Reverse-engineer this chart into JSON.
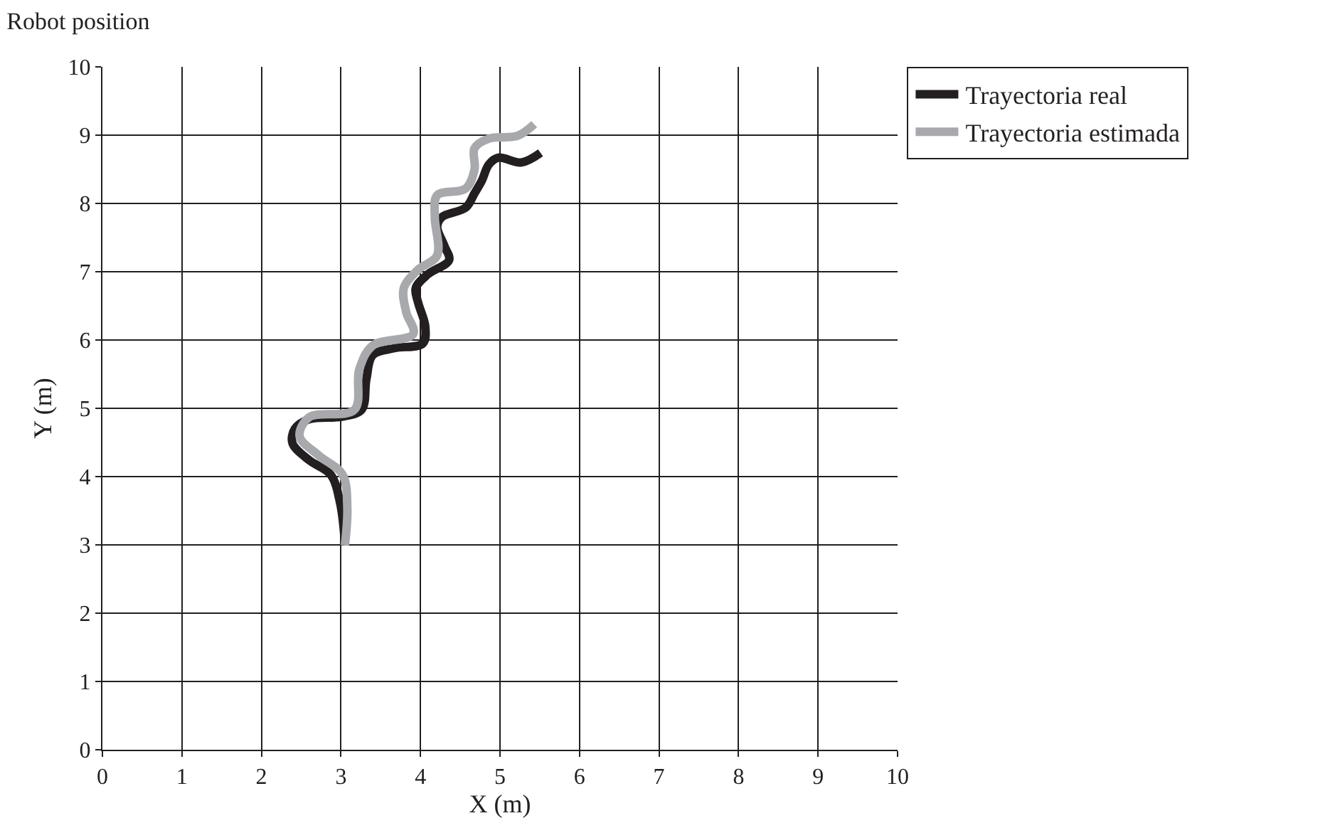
{
  "chart_data": {
    "type": "line",
    "title": "Robot position",
    "xlabel": "X (m)",
    "ylabel": "Y (m)",
    "xlim": [
      0,
      10
    ],
    "ylim": [
      0,
      10
    ],
    "xticks": [
      0,
      1,
      2,
      3,
      4,
      5,
      6,
      7,
      8,
      9,
      10
    ],
    "yticks": [
      0,
      1,
      2,
      3,
      4,
      5,
      6,
      7,
      8,
      9,
      10
    ],
    "grid": true,
    "legend": "top right",
    "marker": "none",
    "line_style": "solid",
    "series": [
      {
        "name": "Trayectoria real",
        "color": "#231f20",
        "x": [
          3.05,
          2.99,
          2.87,
          2.6,
          2.39,
          2.42,
          2.6,
          3.02,
          3.26,
          3.32,
          3.4,
          3.67,
          4.03,
          4.06,
          3.97,
          3.94,
          4.09,
          4.36,
          4.3,
          4.21,
          4.27,
          4.57,
          4.68,
          4.77,
          4.86,
          4.98,
          5.27,
          5.51
        ],
        "values": [
          3.02,
          3.61,
          4.03,
          4.24,
          4.49,
          4.7,
          4.84,
          4.88,
          4.98,
          5.43,
          5.78,
          5.88,
          5.95,
          6.2,
          6.55,
          6.76,
          6.96,
          7.17,
          7.38,
          7.66,
          7.8,
          7.94,
          8.15,
          8.33,
          8.57,
          8.67,
          8.6,
          8.74
        ]
      },
      {
        "name": "Trayectoria estimada",
        "color": "#a7a9ac",
        "x": [
          3.05,
          3.08,
          3.02,
          2.72,
          2.48,
          2.6,
          3.17,
          3.23,
          3.4,
          3.91,
          3.82,
          3.79,
          3.97,
          4.21,
          4.18,
          4.21,
          4.57,
          4.68,
          4.68,
          4.86,
          5.22,
          5.43
        ],
        "values": [
          2.99,
          3.55,
          4.03,
          4.31,
          4.59,
          4.87,
          4.98,
          5.57,
          5.92,
          6.09,
          6.41,
          6.76,
          7.03,
          7.24,
          7.8,
          8.12,
          8.22,
          8.5,
          8.81,
          8.95,
          8.99,
          9.16
        ]
      }
    ]
  }
}
